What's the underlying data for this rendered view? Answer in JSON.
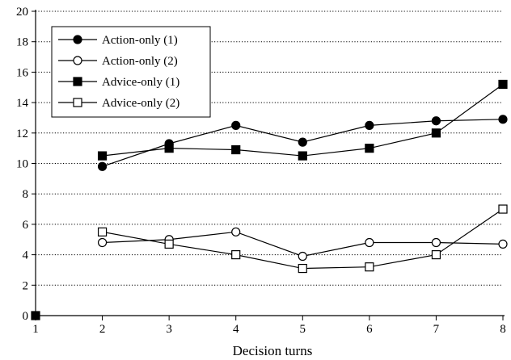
{
  "chart_data": {
    "type": "line",
    "title": "",
    "xlabel": "Decision turns",
    "ylabel": "",
    "x": [
      1,
      2,
      3,
      4,
      5,
      6,
      7,
      8
    ],
    "xlim": [
      1,
      8
    ],
    "ylim": [
      0,
      20
    ],
    "yticks": [
      0,
      2,
      4,
      6,
      8,
      10,
      12,
      14,
      16,
      18,
      20
    ],
    "xticks": [
      1,
      2,
      3,
      4,
      5,
      6,
      7,
      8
    ],
    "grid": "horizontal dotted",
    "legend_position": "top-left",
    "series": [
      {
        "name": "Action-only (1)",
        "marker": "filled-circle",
        "x": [
          2,
          3,
          4,
          5,
          6,
          7,
          8
        ],
        "values": [
          9.8,
          11.3,
          12.5,
          11.4,
          12.5,
          12.8,
          12.9
        ]
      },
      {
        "name": "Action-only (2)",
        "marker": "open-circle",
        "x": [
          2,
          3,
          4,
          5,
          6,
          7,
          8
        ],
        "values": [
          4.8,
          5.0,
          5.5,
          3.9,
          4.8,
          4.8,
          4.7
        ]
      },
      {
        "name": "Advice-only (1)",
        "marker": "filled-square",
        "x": [
          2,
          3,
          4,
          5,
          6,
          7,
          8
        ],
        "values": [
          10.5,
          11.0,
          10.9,
          10.5,
          11.0,
          12.0,
          15.2
        ]
      },
      {
        "name": "Advice-only (2)",
        "marker": "open-square",
        "x": [
          2,
          3,
          4,
          5,
          6,
          7,
          8
        ],
        "values": [
          5.5,
          4.7,
          4.0,
          3.1,
          3.2,
          4.0,
          7.0
        ]
      }
    ],
    "extra_points": [
      {
        "x": 1,
        "y": 0,
        "marker": "filled-square"
      }
    ]
  }
}
